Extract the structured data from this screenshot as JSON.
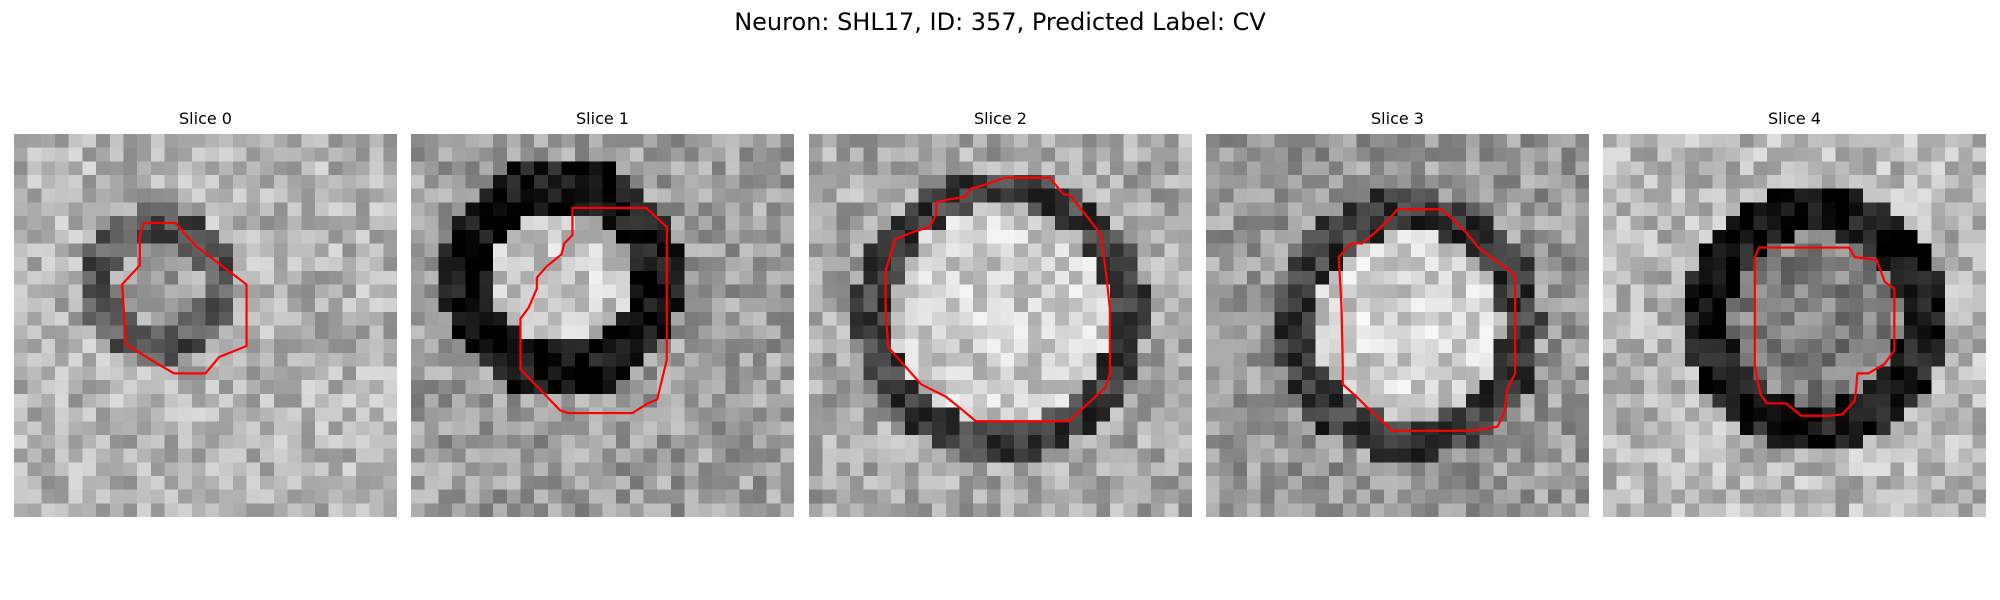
{
  "figure": {
    "title": "Neuron: SHL17, ID: 357, Predicted Label: CV"
  },
  "image": {
    "grid": 28,
    "colormap": "gray",
    "contour_color": "#ff0000"
  },
  "slices": [
    {
      "title": "Slice 0",
      "seed": 11,
      "center": [
        10.5,
        11.0
      ],
      "inner_radius": 3.2,
      "ring_width": 2.6,
      "ring_level": 0.33,
      "inner_level": 0.62,
      "bg_level": 0.7,
      "contour": [
        [
          9.5,
          6.5
        ],
        [
          11.8,
          6.5
        ],
        [
          13.3,
          8.2
        ],
        [
          17.0,
          11.0
        ],
        [
          17.0,
          15.5
        ],
        [
          15.0,
          16.3
        ],
        [
          14.0,
          17.5
        ],
        [
          11.7,
          17.5
        ],
        [
          10.5,
          16.8
        ],
        [
          8.2,
          15.4
        ],
        [
          7.9,
          11.0
        ],
        [
          9.2,
          9.6
        ],
        [
          9.2,
          7.4
        ]
      ]
    },
    {
      "title": "Slice 1",
      "seed": 23,
      "center": [
        11.0,
        10.5
      ],
      "inner_radius": 5.0,
      "ring_width": 3.8,
      "ring_level": 0.06,
      "inner_level": 0.78,
      "bg_level": 0.62,
      "contour": [
        [
          11.8,
          5.4
        ],
        [
          17.2,
          5.4
        ],
        [
          18.7,
          6.8
        ],
        [
          18.7,
          16.5
        ],
        [
          18.0,
          19.4
        ],
        [
          17.3,
          19.7
        ],
        [
          16.5,
          20.2
        ],
        [
          16.2,
          20.4
        ],
        [
          11.5,
          20.4
        ],
        [
          10.9,
          20.2
        ],
        [
          8.0,
          17.2
        ],
        [
          8.0,
          13.5
        ],
        [
          8.6,
          12.7
        ],
        [
          9.2,
          11.3
        ],
        [
          9.2,
          10.5
        ],
        [
          9.9,
          9.7
        ],
        [
          11.0,
          8.8
        ],
        [
          11.2,
          8.0
        ],
        [
          11.8,
          7.4
        ]
      ]
    },
    {
      "title": "Slice 2",
      "seed": 37,
      "center": [
        14.0,
        13.3
      ],
      "inner_radius": 8.0,
      "ring_width": 2.7,
      "ring_level": 0.24,
      "inner_level": 0.8,
      "bg_level": 0.66,
      "contour": [
        [
          14.3,
          3.2
        ],
        [
          17.6,
          3.2
        ],
        [
          18.6,
          4.4
        ],
        [
          19.1,
          4.5
        ],
        [
          20.3,
          6.0
        ],
        [
          21.3,
          7.3
        ],
        [
          21.7,
          10.0
        ],
        [
          22.0,
          12.8
        ],
        [
          22.0,
          17.5
        ],
        [
          21.7,
          18.5
        ],
        [
          19.0,
          21.0
        ],
        [
          17.6,
          21.0
        ],
        [
          12.2,
          21.0
        ],
        [
          11.0,
          20.0
        ],
        [
          10.0,
          19.2
        ],
        [
          8.2,
          18.3
        ],
        [
          5.8,
          15.6
        ],
        [
          5.6,
          13.0
        ],
        [
          5.6,
          10.0
        ],
        [
          6.3,
          7.7
        ],
        [
          7.5,
          7.2
        ],
        [
          8.8,
          6.8
        ],
        [
          9.3,
          5.9
        ],
        [
          9.3,
          5.0
        ],
        [
          10.1,
          4.8
        ],
        [
          11.4,
          4.6
        ],
        [
          11.8,
          4.0
        ],
        [
          12.6,
          3.8
        ]
      ]
    },
    {
      "title": "Slice 3",
      "seed": 53,
      "center": [
        14.8,
        14.0
      ],
      "inner_radius": 6.8,
      "ring_width": 3.0,
      "ring_level": 0.22,
      "inner_level": 0.82,
      "bg_level": 0.6,
      "contour": [
        [
          14.0,
          5.5
        ],
        [
          15.9,
          5.5
        ],
        [
          17.2,
          5.5
        ],
        [
          18.0,
          6.2
        ],
        [
          19.1,
          7.3
        ],
        [
          20.0,
          8.4
        ],
        [
          22.6,
          10.3
        ],
        [
          22.6,
          17.5
        ],
        [
          22.0,
          18.7
        ],
        [
          21.8,
          20.4
        ],
        [
          21.3,
          21.4
        ],
        [
          19.3,
          21.7
        ],
        [
          13.6,
          21.7
        ],
        [
          12.9,
          21.0
        ],
        [
          11.8,
          20.0
        ],
        [
          11.0,
          19.2
        ],
        [
          10.0,
          18.3
        ],
        [
          10.0,
          17.0
        ],
        [
          9.9,
          12.5
        ],
        [
          9.7,
          9.0
        ],
        [
          10.6,
          8.0
        ],
        [
          11.4,
          8.0
        ],
        [
          12.6,
          7.0
        ],
        [
          13.4,
          6.2
        ]
      ]
    },
    {
      "title": "Slice 4",
      "seed": 71,
      "center": [
        15.5,
        13.5
      ],
      "inner_radius": 6.2,
      "ring_width": 3.3,
      "ring_level": 0.08,
      "inner_level": 0.5,
      "bg_level": 0.72,
      "contour": [
        [
          11.4,
          8.3
        ],
        [
          18.0,
          8.3
        ],
        [
          18.4,
          9.0
        ],
        [
          20.0,
          9.2
        ],
        [
          20.6,
          10.8
        ],
        [
          21.3,
          11.3
        ],
        [
          21.3,
          15.8
        ],
        [
          20.6,
          16.8
        ],
        [
          19.4,
          17.5
        ],
        [
          18.6,
          17.5
        ],
        [
          18.5,
          18.7
        ],
        [
          18.4,
          19.5
        ],
        [
          17.5,
          20.5
        ],
        [
          16.5,
          20.6
        ],
        [
          14.5,
          20.6
        ],
        [
          13.4,
          19.7
        ],
        [
          12.0,
          19.7
        ],
        [
          11.5,
          19.0
        ],
        [
          11.1,
          17.0
        ],
        [
          11.1,
          9.0
        ]
      ]
    }
  ]
}
